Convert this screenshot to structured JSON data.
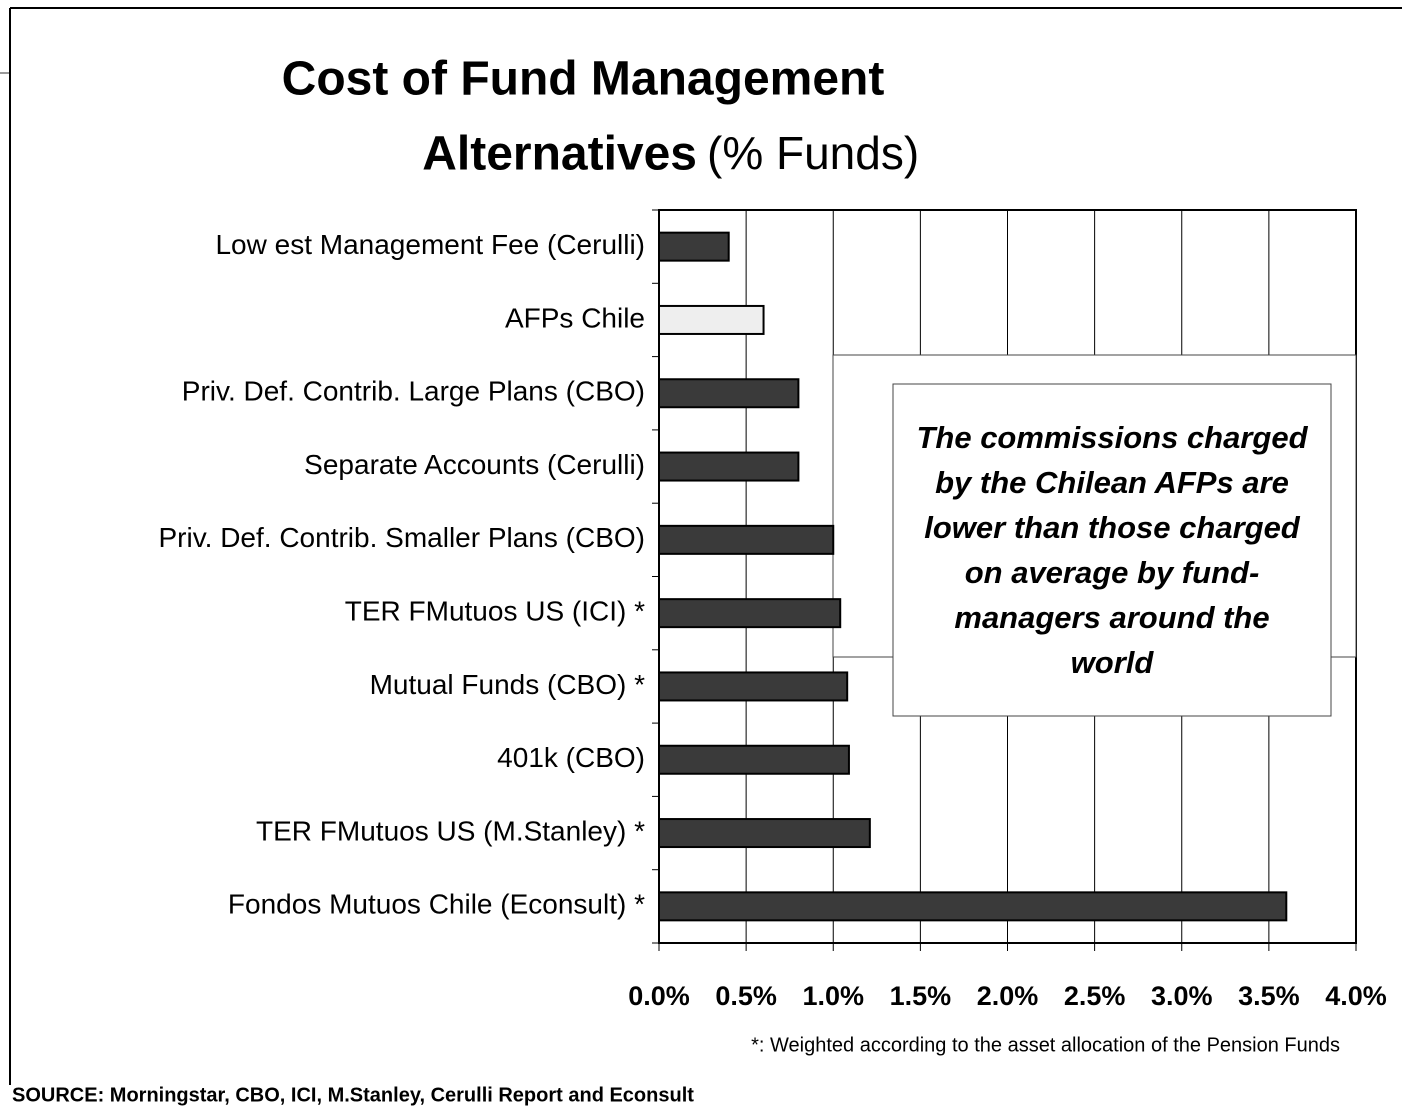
{
  "chart_data": {
    "type": "bar",
    "orientation": "horizontal",
    "title": [
      "Cost of Fund Management",
      "Alternatives"
    ],
    "subtitle": "(% Funds)",
    "categories": [
      "Low est Management Fee (Cerulli)",
      "AFPs Chile",
      "Priv. Def. Contrib. Large Plans (CBO)",
      "Separate Accounts (Cerulli)",
      "Priv. Def. Contrib. Smaller Plans (CBO)",
      "TER FMutuos US (ICI) *",
      "Mutual Funds (CBO) *",
      "401k (CBO)",
      "TER FMutuos US (M.Stanley) *",
      "Fondos Mutuos Chile (Econsult) *"
    ],
    "values": [
      0.4,
      0.6,
      0.8,
      0.8,
      1.0,
      1.04,
      1.08,
      1.09,
      1.21,
      3.6
    ],
    "colors": [
      "#3a3a3a",
      "#eeeeee",
      "#3a3a3a",
      "#3a3a3a",
      "#3a3a3a",
      "#3a3a3a",
      "#3a3a3a",
      "#3a3a3a",
      "#3a3a3a",
      "#3a3a3a"
    ],
    "xlim": [
      0,
      4
    ],
    "xticks": [
      {
        "value": 0,
        "label": "0.0%"
      },
      {
        "value": 0.5,
        "label": "0.5%"
      },
      {
        "value": 1,
        "label": "1.0%"
      },
      {
        "value": 1.5,
        "label": "1.5%"
      },
      {
        "value": 2,
        "label": "2.0%"
      },
      {
        "value": 2.5,
        "label": "2.5%"
      },
      {
        "value": 3,
        "label": "3.0%"
      },
      {
        "value": 3.5,
        "label": "3.5%"
      },
      {
        "value": 4,
        "label": "4.0%"
      }
    ],
    "grid": true,
    "annotation": "The commissions charged by the Chilean AFPs are lower than those charged on average by fund-managers around the world",
    "footnote": "*: Weighted according to the asset allocation of the Pension Funds",
    "source": "SOURCE: Morningstar, CBO, ICI, M.Stanley, Cerulli Report and Econsult"
  }
}
